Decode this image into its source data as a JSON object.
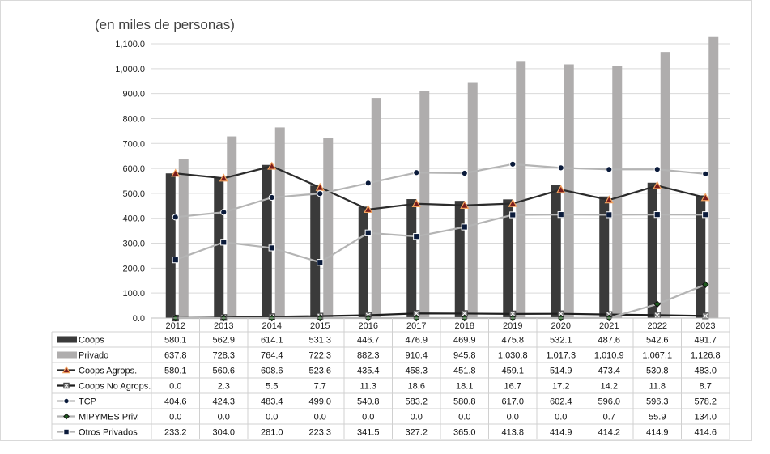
{
  "chart_data": {
    "type": "bar",
    "subtitle": "(en miles de personas)",
    "categories": [
      "2012",
      "2013",
      "2014",
      "2015",
      "2016",
      "2017",
      "2018",
      "2019",
      "2020",
      "2021",
      "2022",
      "2023"
    ],
    "ylim": [
      0,
      1100
    ],
    "yticks": [
      0,
      100,
      200,
      300,
      400,
      500,
      600,
      700,
      800,
      900,
      1000,
      1100
    ],
    "ytick_labels": [
      "0.0",
      "100.0",
      "200.0",
      "300.0",
      "400.0",
      "500.0",
      "600.0",
      "700.0",
      "800.0",
      "900.0",
      "1,000.0",
      "1,100.0"
    ],
    "grid": true,
    "legend_placement": "data-table",
    "series": [
      {
        "name": "Coops",
        "kind": "bar",
        "color": "#3a3a3a",
        "legend_symbol": "bar",
        "values": [
          580.1,
          562.9,
          614.1,
          531.3,
          446.7,
          476.9,
          469.9,
          475.8,
          532.1,
          487.6,
          542.6,
          491.7
        ],
        "labels": [
          "580.1",
          "562.9",
          "614.1",
          "531.3",
          "446.7",
          "476.9",
          "469.9",
          "475.8",
          "532.1",
          "487.6",
          "542.6",
          "491.7"
        ]
      },
      {
        "name": "Privado",
        "kind": "bar",
        "color": "#afadad",
        "legend_symbol": "bar",
        "values": [
          637.8,
          728.3,
          764.4,
          722.3,
          882.3,
          910.4,
          945.8,
          1030.8,
          1017.3,
          1010.9,
          1067.1,
          1126.8
        ],
        "labels": [
          "637.8",
          "728.3",
          "764.4",
          "722.3",
          "882.3",
          "910.4",
          "945.8",
          "1,030.8",
          "1,017.3",
          "1,010.9",
          "1,067.1",
          "1,126.8"
        ]
      },
      {
        "name": "Coops Agrops.",
        "kind": "line",
        "color": "#2b2b2b",
        "marker": "triangle",
        "marker_fill": "#7a1c1c",
        "marker_stroke": "#f4a460",
        "values": [
          580.1,
          560.6,
          608.6,
          523.6,
          435.4,
          458.3,
          451.8,
          459.1,
          514.9,
          473.4,
          530.8,
          483.0
        ],
        "labels": [
          "580.1",
          "560.6",
          "608.6",
          "523.6",
          "435.4",
          "458.3",
          "451.8",
          "459.1",
          "514.9",
          "473.4",
          "530.8",
          "483.0"
        ]
      },
      {
        "name": "Coops No Agrops.",
        "kind": "line",
        "color": "#1f1f1f",
        "marker": "x-square",
        "marker_fill": "#7f7f7f",
        "marker_stroke": "#404040",
        "values": [
          0.0,
          2.3,
          5.5,
          7.7,
          11.3,
          18.6,
          18.1,
          16.7,
          17.2,
          14.2,
          11.8,
          8.7
        ],
        "labels": [
          "0.0",
          "2.3",
          "5.5",
          "7.7",
          "11.3",
          "18.6",
          "18.1",
          "16.7",
          "17.2",
          "14.2",
          "11.8",
          "8.7"
        ]
      },
      {
        "name": "TCP",
        "kind": "line",
        "color": "#b4b4b4",
        "marker": "circle",
        "marker_fill": "#0a1a3a",
        "marker_stroke": "#ffffff",
        "values": [
          404.6,
          424.3,
          483.4,
          499.0,
          540.8,
          583.2,
          580.8,
          617.0,
          602.4,
          596.0,
          596.3,
          578.2
        ],
        "labels": [
          "404.6",
          "424.3",
          "483.4",
          "499.0",
          "540.8",
          "583.2",
          "580.8",
          "617.0",
          "602.4",
          "596.0",
          "596.3",
          "578.2"
        ]
      },
      {
        "name": "MIPYMES Priv.",
        "kind": "line",
        "color": "#b4b4b4",
        "marker": "diamond",
        "marker_fill": "#1e5a1e",
        "marker_stroke": "#111111",
        "values": [
          0.0,
          0.0,
          0.0,
          0.0,
          0.0,
          0.0,
          0.0,
          0.0,
          0.0,
          0.7,
          55.9,
          134.0
        ],
        "labels": [
          "0.0",
          "0.0",
          "0.0",
          "0.0",
          "0.0",
          "0.0",
          "0.0",
          "0.0",
          "0.0",
          "0.7",
          "55.9",
          "134.0"
        ]
      },
      {
        "name": "Otros Privados",
        "kind": "line",
        "color": "#b4b4b4",
        "marker": "square",
        "marker_fill": "#0a1a3a",
        "marker_stroke": "#ffffff",
        "values": [
          233.2,
          304.0,
          281.0,
          223.3,
          341.5,
          327.2,
          365.0,
          413.8,
          414.9,
          414.2,
          414.9,
          414.6
        ],
        "labels": [
          "233.2",
          "304.0",
          "281.0",
          "223.3",
          "341.5",
          "327.2",
          "365.0",
          "413.8",
          "414.9",
          "414.2",
          "414.9",
          "414.6"
        ]
      }
    ]
  }
}
